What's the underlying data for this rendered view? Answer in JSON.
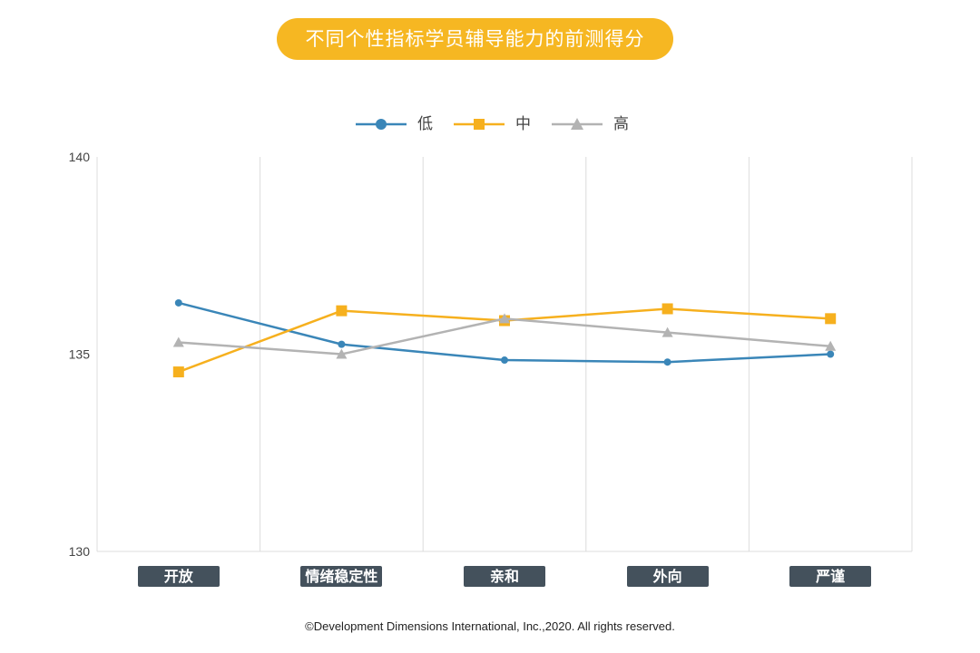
{
  "title": "不同个性指标学员辅导能力的前测得分",
  "footer": "©Development Dimensions International, Inc.,2020. All rights reserved.",
  "chart_data": {
    "type": "line",
    "categories": [
      "开放",
      "情绪稳定性",
      "亲和",
      "外向",
      "严谨"
    ],
    "ylim": [
      130,
      140
    ],
    "yticks": [
      "130",
      "135",
      "140"
    ],
    "grid": "vertical",
    "legend_position": "top-center",
    "series": [
      {
        "name": "低",
        "color": "#3a86b8",
        "marker": "circle",
        "values": [
          136.3,
          135.25,
          134.85,
          134.8,
          135.0
        ]
      },
      {
        "name": "中",
        "color": "#f6b01e",
        "marker": "square",
        "values": [
          134.55,
          136.1,
          135.85,
          136.15,
          135.9
        ]
      },
      {
        "name": "高",
        "color": "#b3b3b3",
        "marker": "triangle",
        "values": [
          135.3,
          135.0,
          135.9,
          135.55,
          135.2
        ]
      }
    ]
  }
}
